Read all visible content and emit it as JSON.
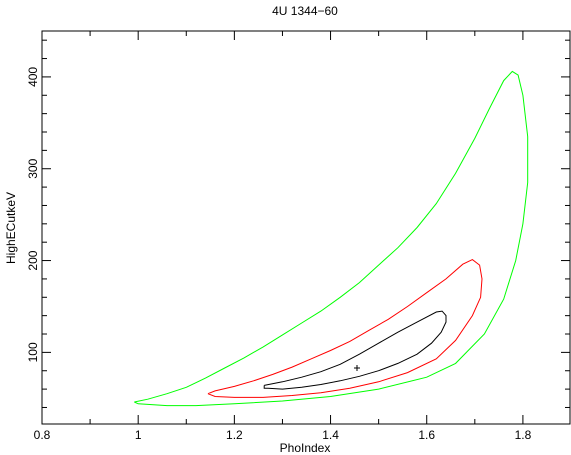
{
  "chart_data": {
    "type": "line",
    "title": "4U 1344−60",
    "xlabel": "PhoIndex",
    "ylabel": "HighECutkeV",
    "xlim": [
      0.8,
      1.9
    ],
    "ylim": [
      22,
      450
    ],
    "x_ticks": [
      0.8,
      1.0,
      1.2,
      1.4,
      1.6,
      1.8
    ],
    "x_tick_labels": [
      "0.8",
      "1",
      "1.2",
      "1.4",
      "1.6",
      "1.8"
    ],
    "y_ticks": [
      100,
      200,
      300,
      400
    ],
    "y_tick_labels": [
      "100",
      "200",
      "300",
      "400"
    ],
    "x_minor_step": 0.1,
    "y_minor_step": 20,
    "grid": false,
    "best_fit": {
      "x": 1.455,
      "y": 83
    },
    "series": [
      {
        "color": "#000000",
        "points": [
          [
            1.262,
            64
          ],
          [
            1.262,
            61
          ],
          [
            1.27,
            61
          ],
          [
            1.3,
            60
          ],
          [
            1.34,
            62
          ],
          [
            1.38,
            65
          ],
          [
            1.42,
            69
          ],
          [
            1.46,
            74
          ],
          [
            1.5,
            80
          ],
          [
            1.54,
            88
          ],
          [
            1.58,
            98
          ],
          [
            1.61,
            110
          ],
          [
            1.63,
            122
          ],
          [
            1.64,
            133
          ],
          [
            1.64,
            140
          ],
          [
            1.632,
            145
          ],
          [
            1.62,
            144
          ],
          [
            1.58,
            133
          ],
          [
            1.54,
            122
          ],
          [
            1.5,
            110
          ],
          [
            1.46,
            98
          ],
          [
            1.42,
            87
          ],
          [
            1.38,
            79
          ],
          [
            1.34,
            73
          ],
          [
            1.3,
            68
          ],
          [
            1.262,
            64
          ]
        ]
      },
      {
        "color": "#ff0000",
        "points": [
          [
            1.145,
            55
          ],
          [
            1.16,
            52
          ],
          [
            1.2,
            51
          ],
          [
            1.26,
            51
          ],
          [
            1.32,
            53
          ],
          [
            1.38,
            56
          ],
          [
            1.44,
            61
          ],
          [
            1.5,
            68
          ],
          [
            1.56,
            78
          ],
          [
            1.62,
            93
          ],
          [
            1.66,
            113
          ],
          [
            1.695,
            140
          ],
          [
            1.712,
            160
          ],
          [
            1.715,
            180
          ],
          [
            1.71,
            195
          ],
          [
            1.695,
            201
          ],
          [
            1.675,
            196
          ],
          [
            1.64,
            180
          ],
          [
            1.6,
            165
          ],
          [
            1.56,
            150
          ],
          [
            1.52,
            136
          ],
          [
            1.48,
            124
          ],
          [
            1.44,
            112
          ],
          [
            1.4,
            102
          ],
          [
            1.36,
            93
          ],
          [
            1.32,
            84
          ],
          [
            1.28,
            76
          ],
          [
            1.24,
            69
          ],
          [
            1.2,
            63
          ],
          [
            1.16,
            58
          ],
          [
            1.145,
            55
          ]
        ]
      },
      {
        "color": "#00ff00",
        "points": [
          [
            0.992,
            46
          ],
          [
            1.0,
            44
          ],
          [
            1.06,
            42
          ],
          [
            1.12,
            42
          ],
          [
            1.2,
            44
          ],
          [
            1.3,
            47
          ],
          [
            1.4,
            52
          ],
          [
            1.5,
            60
          ],
          [
            1.6,
            73
          ],
          [
            1.66,
            88
          ],
          [
            1.72,
            120
          ],
          [
            1.76,
            158
          ],
          [
            1.785,
            200
          ],
          [
            1.8,
            240
          ],
          [
            1.81,
            285
          ],
          [
            1.81,
            335
          ],
          [
            1.8,
            380
          ],
          [
            1.79,
            402
          ],
          [
            1.778,
            406
          ],
          [
            1.76,
            396
          ],
          [
            1.73,
            365
          ],
          [
            1.7,
            333
          ],
          [
            1.66,
            295
          ],
          [
            1.62,
            262
          ],
          [
            1.58,
            236
          ],
          [
            1.54,
            214
          ],
          [
            1.5,
            195
          ],
          [
            1.46,
            176
          ],
          [
            1.42,
            160
          ],
          [
            1.38,
            145
          ],
          [
            1.34,
            132
          ],
          [
            1.3,
            119
          ],
          [
            1.26,
            106
          ],
          [
            1.22,
            94
          ],
          [
            1.18,
            83
          ],
          [
            1.14,
            72
          ],
          [
            1.1,
            62
          ],
          [
            1.06,
            55
          ],
          [
            1.02,
            49
          ],
          [
            0.992,
            46
          ]
        ]
      }
    ]
  }
}
